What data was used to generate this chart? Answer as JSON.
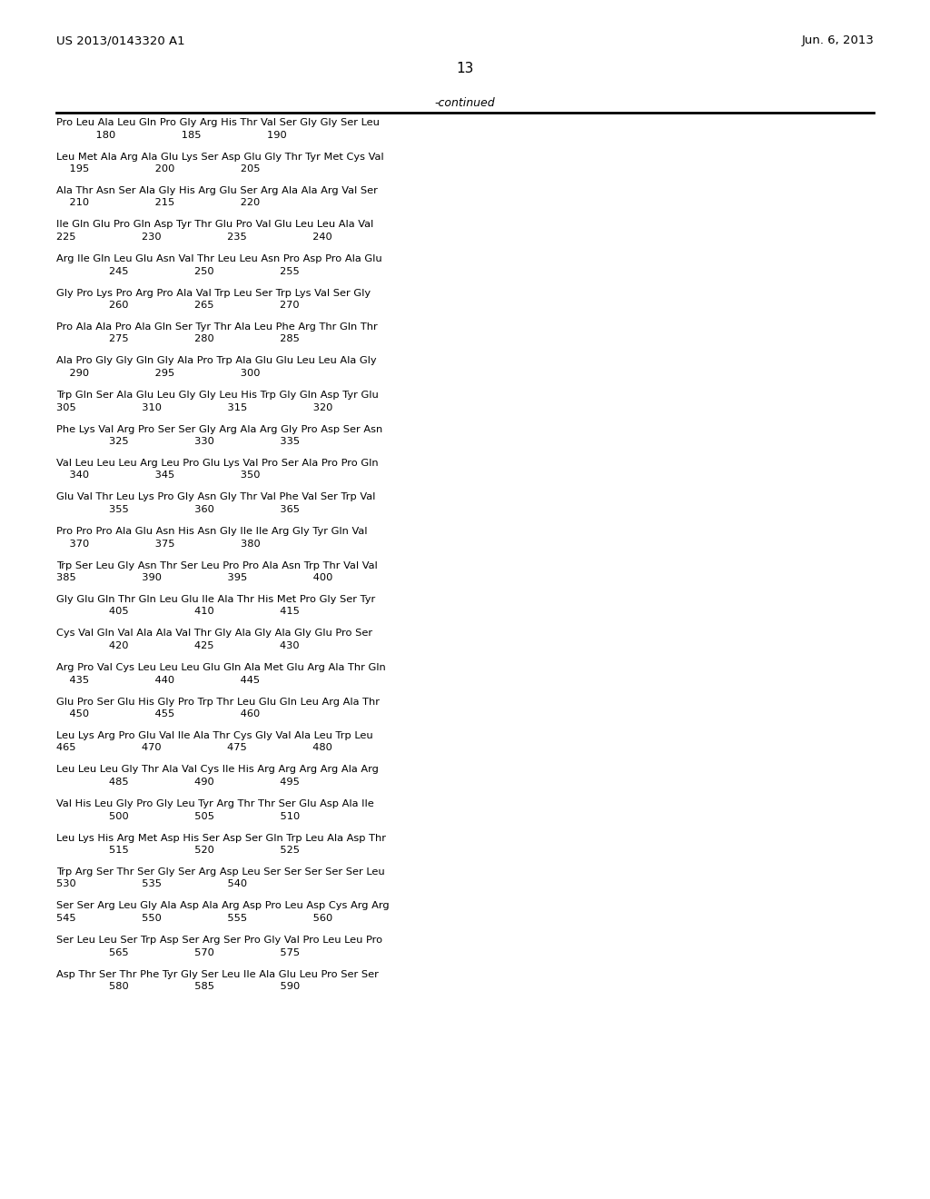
{
  "header_left": "US 2013/0143320 A1",
  "header_right": "Jun. 6, 2013",
  "page_number": "13",
  "continued_label": "-continued",
  "background_color": "#ffffff",
  "text_color": "#000000",
  "sequences": [
    [
      "Pro Leu Ala Leu Gln Pro Gly Arg His Thr Val Ser Gly Gly Ser Leu",
      "            180                    185                    190"
    ],
    [
      "Leu Met Ala Arg Ala Glu Lys Ser Asp Glu Gly Thr Tyr Met Cys Val",
      "    195                    200                    205"
    ],
    [
      "Ala Thr Asn Ser Ala Gly His Arg Glu Ser Arg Ala Ala Arg Val Ser",
      "    210                    215                    220"
    ],
    [
      "Ile Gln Glu Pro Gln Asp Tyr Thr Glu Pro Val Glu Leu Leu Ala Val",
      "225                    230                    235                    240"
    ],
    [
      "Arg Ile Gln Leu Glu Asn Val Thr Leu Leu Asn Pro Asp Pro Ala Glu",
      "                245                    250                    255"
    ],
    [
      "Gly Pro Lys Pro Arg Pro Ala Val Trp Leu Ser Trp Lys Val Ser Gly",
      "                260                    265                    270"
    ],
    [
      "Pro Ala Ala Pro Ala Gln Ser Tyr Thr Ala Leu Phe Arg Thr Gln Thr",
      "                275                    280                    285"
    ],
    [
      "Ala Pro Gly Gly Gln Gly Ala Pro Trp Ala Glu Glu Leu Leu Ala Gly",
      "    290                    295                    300"
    ],
    [
      "Trp Gln Ser Ala Glu Leu Gly Gly Leu His Trp Gly Gln Asp Tyr Glu",
      "305                    310                    315                    320"
    ],
    [
      "Phe Lys Val Arg Pro Ser Ser Gly Arg Ala Arg Gly Pro Asp Ser Asn",
      "                325                    330                    335"
    ],
    [
      "Val Leu Leu Leu Arg Leu Pro Glu Lys Val Pro Ser Ala Pro Pro Gln",
      "    340                    345                    350"
    ],
    [
      "Glu Val Thr Leu Lys Pro Gly Asn Gly Thr Val Phe Val Ser Trp Val",
      "                355                    360                    365"
    ],
    [
      "Pro Pro Pro Ala Glu Asn His Asn Gly Ile Ile Arg Gly Tyr Gln Val",
      "    370                    375                    380"
    ],
    [
      "Trp Ser Leu Gly Asn Thr Ser Leu Pro Pro Ala Asn Trp Thr Val Val",
      "385                    390                    395                    400"
    ],
    [
      "Gly Glu Gln Thr Gln Leu Glu Ile Ala Thr His Met Pro Gly Ser Tyr",
      "                405                    410                    415"
    ],
    [
      "Cys Val Gln Val Ala Ala Val Thr Gly Ala Gly Ala Gly Glu Pro Ser",
      "                420                    425                    430"
    ],
    [
      "Arg Pro Val Cys Leu Leu Leu Glu Gln Ala Met Glu Arg Ala Thr Gln",
      "    435                    440                    445"
    ],
    [
      "Glu Pro Ser Glu His Gly Pro Trp Thr Leu Glu Gln Leu Arg Ala Thr",
      "    450                    455                    460"
    ],
    [
      "Leu Lys Arg Pro Glu Val Ile Ala Thr Cys Gly Val Ala Leu Trp Leu",
      "465                    470                    475                    480"
    ],
    [
      "Leu Leu Leu Gly Thr Ala Val Cys Ile His Arg Arg Arg Arg Ala Arg",
      "                485                    490                    495"
    ],
    [
      "Val His Leu Gly Pro Gly Leu Tyr Arg Thr Thr Ser Glu Asp Ala Ile",
      "                500                    505                    510"
    ],
    [
      "Leu Lys His Arg Met Asp His Ser Asp Ser Gln Trp Leu Ala Asp Thr",
      "                515                    520                    525"
    ],
    [
      "Trp Arg Ser Thr Ser Gly Ser Arg Asp Leu Ser Ser Ser Ser Ser Leu",
      "530                    535                    540"
    ],
    [
      "Ser Ser Arg Leu Gly Ala Asp Ala Arg Asp Pro Leu Asp Cys Arg Arg",
      "545                    550                    555                    560"
    ],
    [
      "Ser Leu Leu Ser Trp Asp Ser Arg Ser Pro Gly Val Pro Leu Leu Pro",
      "                565                    570                    575"
    ],
    [
      "Asp Thr Ser Thr Phe Tyr Gly Ser Leu Ile Ala Glu Leu Pro Ser Ser",
      "                580                    585                    590"
    ]
  ]
}
